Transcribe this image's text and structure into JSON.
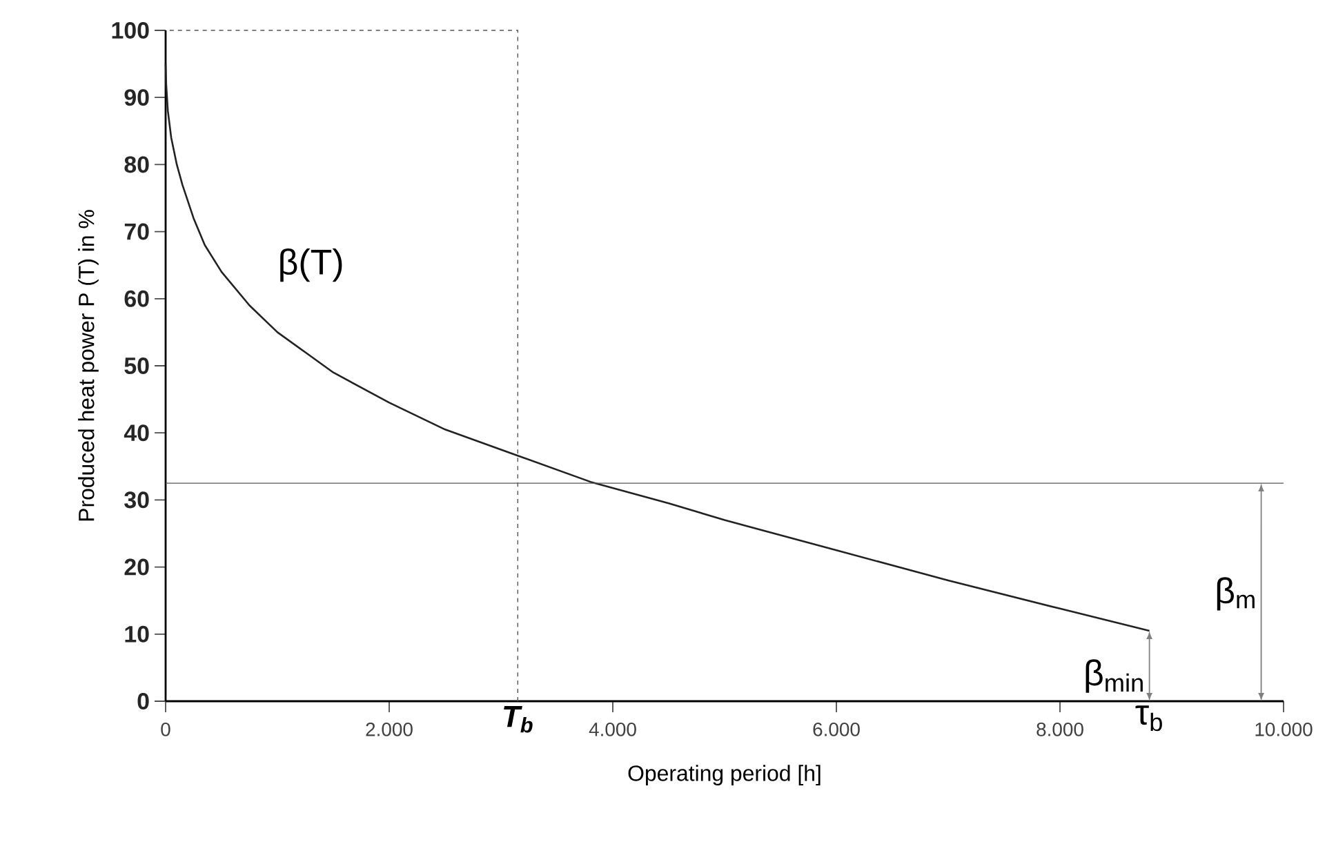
{
  "chart_data": {
    "type": "line",
    "xlabel": "Operating period [h]",
    "ylabel": "Produced heat power P (T) in %",
    "xlim": [
      0,
      10000
    ],
    "ylim": [
      0,
      100
    ],
    "xticks": [
      0,
      {
        "value": 2000,
        "label": "2.000"
      },
      {
        "value": 4000,
        "label": "4.000"
      },
      {
        "value": 6000,
        "label": "6.000"
      },
      {
        "value": 8000,
        "label": "8.000"
      },
      {
        "value": 10000,
        "label": "10.000"
      }
    ],
    "yticks": [
      0,
      10,
      20,
      30,
      40,
      50,
      60,
      70,
      80,
      90,
      100
    ],
    "series": [
      {
        "color": "#222222",
        "x": [
          0,
          5,
          20,
          50,
          100,
          150,
          250,
          350,
          500,
          750,
          1000,
          1250,
          1500,
          2000,
          2500,
          3000,
          3150,
          3800,
          4500,
          5000,
          6000,
          7000,
          8000,
          8800
        ],
        "values": [
          95,
          92,
          88,
          84,
          80,
          77,
          72,
          68,
          64,
          59,
          55,
          52,
          49,
          44.5,
          40.5,
          37.5,
          36.6,
          32.7,
          29.5,
          27,
          22.5,
          18,
          13.8,
          10.5
        ]
      }
    ],
    "ref_lines": [
      {
        "axis": "x",
        "value": 3150,
        "label": "T$_{b}$",
        "color": "#555555",
        "line_style": "dashed"
      },
      {
        "axis": "y",
        "value": 32.5,
        "color": "#555555",
        "line_style": "solid"
      }
    ],
    "annotations": [
      "β(T)",
      "τ$_{b}$",
      "β$_{min}$",
      "β$_{m}$"
    ],
    "grid": false,
    "marker": "none",
    "line_style": "solid"
  }
}
